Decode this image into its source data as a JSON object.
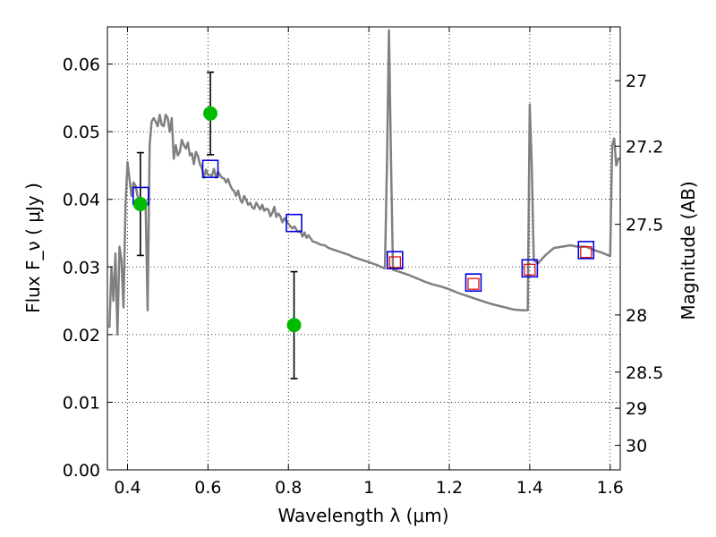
{
  "chart_data": {
    "type": "scatter",
    "xlabel": "Wavelength  λ (μm)",
    "ylabel": "Flux  F_ν  ( μJy )",
    "ylabel_right": "Magnitude (AB)",
    "xlim": [
      0.35,
      1.625
    ],
    "ylim": [
      0.0,
      0.0655
    ],
    "grid": true,
    "x_ticks": [
      {
        "v": 0.4,
        "label": "0.4"
      },
      {
        "v": 0.6,
        "label": "0.6"
      },
      {
        "v": 0.8,
        "label": "0.8"
      },
      {
        "v": 1.0,
        "label": "1"
      },
      {
        "v": 1.2,
        "label": "1.2"
      },
      {
        "v": 1.4,
        "label": "1.4"
      },
      {
        "v": 1.6,
        "label": "1.6"
      }
    ],
    "y_ticks": [
      {
        "v": 0.0,
        "label": "0.00"
      },
      {
        "v": 0.01,
        "label": "0.01"
      },
      {
        "v": 0.02,
        "label": "0.02"
      },
      {
        "v": 0.03,
        "label": "0.03"
      },
      {
        "v": 0.04,
        "label": "0.04"
      },
      {
        "v": 0.05,
        "label": "0.05"
      },
      {
        "v": 0.06,
        "label": "0.06"
      }
    ],
    "right_ticks": [
      {
        "mag": 27,
        "label": "27"
      },
      {
        "mag": 27.2,
        "label": "27.2"
      },
      {
        "mag": 27.5,
        "label": "27.5"
      },
      {
        "mag": 28,
        "label": "28"
      },
      {
        "mag": 28.5,
        "label": "28.5"
      },
      {
        "mag": 29,
        "label": "29"
      },
      {
        "mag": 30,
        "label": "30"
      }
    ],
    "sed_model": {
      "color": "#808080",
      "x": [
        0.355,
        0.36,
        0.365,
        0.37,
        0.375,
        0.38,
        0.385,
        0.39,
        0.395,
        0.4,
        0.405,
        0.41,
        0.415,
        0.42,
        0.425,
        0.43,
        0.435,
        0.44,
        0.445,
        0.45,
        0.455,
        0.46,
        0.465,
        0.47,
        0.475,
        0.48,
        0.485,
        0.49,
        0.495,
        0.5,
        0.505,
        0.51,
        0.515,
        0.52,
        0.525,
        0.53,
        0.535,
        0.54,
        0.545,
        0.55,
        0.555,
        0.56,
        0.565,
        0.57,
        0.575,
        0.58,
        0.585,
        0.59,
        0.595,
        0.6,
        0.605,
        0.61,
        0.615,
        0.62,
        0.625,
        0.63,
        0.635,
        0.64,
        0.645,
        0.65,
        0.655,
        0.66,
        0.665,
        0.67,
        0.675,
        0.68,
        0.685,
        0.69,
        0.695,
        0.7,
        0.705,
        0.71,
        0.715,
        0.72,
        0.725,
        0.73,
        0.735,
        0.74,
        0.745,
        0.75,
        0.755,
        0.76,
        0.765,
        0.77,
        0.775,
        0.78,
        0.785,
        0.79,
        0.795,
        0.8,
        0.805,
        0.81,
        0.815,
        0.82,
        0.825,
        0.83,
        0.835,
        0.84,
        0.845,
        0.85,
        0.86,
        0.87,
        0.88,
        0.89,
        0.9,
        0.91,
        0.92,
        0.93,
        0.94,
        0.95,
        0.96,
        0.97,
        0.98,
        0.99,
        1.0,
        1.01,
        1.02,
        1.03,
        1.04,
        1.045,
        1.05,
        1.055,
        1.06,
        1.065,
        1.07,
        1.08,
        1.1,
        1.12,
        1.14,
        1.16,
        1.18,
        1.2,
        1.22,
        1.24,
        1.26,
        1.28,
        1.3,
        1.32,
        1.34,
        1.36,
        1.38,
        1.39,
        1.395,
        1.4,
        1.405,
        1.41,
        1.42,
        1.44,
        1.46,
        1.48,
        1.5,
        1.52,
        1.54,
        1.56,
        1.58,
        1.6,
        1.605,
        1.61,
        1.615,
        1.62,
        1.625
      ],
      "y": [
        0.021,
        0.03,
        0.025,
        0.032,
        0.02,
        0.033,
        0.031,
        0.024,
        0.039,
        0.0455,
        0.043,
        0.0405,
        0.0425,
        0.042,
        0.0405,
        0.0395,
        0.039,
        0.0395,
        0.0395,
        0.0236,
        0.048,
        0.0515,
        0.052,
        0.0515,
        0.0508,
        0.0525,
        0.051,
        0.0508,
        0.0525,
        0.052,
        0.05,
        0.052,
        0.046,
        0.048,
        0.0465,
        0.047,
        0.0488,
        0.048,
        0.0475,
        0.0484,
        0.0465,
        0.0468,
        0.0452,
        0.047,
        0.0464,
        0.0452,
        0.0446,
        0.0432,
        0.0444,
        0.0436,
        0.0436,
        0.0435,
        0.0445,
        0.0432,
        0.0441,
        0.0436,
        0.0432,
        0.0431,
        0.0425,
        0.043,
        0.0421,
        0.0415,
        0.0412,
        0.0405,
        0.0413,
        0.04,
        0.0395,
        0.0405,
        0.0399,
        0.0392,
        0.0395,
        0.0388,
        0.0386,
        0.0395,
        0.039,
        0.0385,
        0.0392,
        0.0383,
        0.0386,
        0.0385,
        0.0375,
        0.038,
        0.0389,
        0.0374,
        0.0379,
        0.0375,
        0.0366,
        0.0372,
        0.0368,
        0.0364,
        0.036,
        0.0357,
        0.036,
        0.0355,
        0.0352,
        0.0353,
        0.0345,
        0.0351,
        0.0343,
        0.0347,
        0.0338,
        0.0336,
        0.0333,
        0.0332,
        0.0328,
        0.0326,
        0.0324,
        0.0322,
        0.032,
        0.0318,
        0.0315,
        0.0313,
        0.0311,
        0.0309,
        0.0307,
        0.0305,
        0.0303,
        0.03,
        0.0298,
        0.045,
        0.065,
        0.046,
        0.0296,
        0.0295,
        0.0294,
        0.0292,
        0.0288,
        0.0283,
        0.0278,
        0.0274,
        0.0271,
        0.0267,
        0.0262,
        0.0258,
        0.0254,
        0.025,
        0.0246,
        0.0243,
        0.024,
        0.0237,
        0.0236,
        0.0236,
        0.0236,
        0.054,
        0.045,
        0.031,
        0.0305,
        0.0318,
        0.0328,
        0.033,
        0.0332,
        0.033,
        0.033,
        0.0325,
        0.0321,
        0.0316,
        0.048,
        0.049,
        0.045,
        0.046,
        0.046
      ]
    },
    "observed_points": {
      "color": "#00bb00",
      "points": [
        {
          "x": 0.432,
          "y": 0.0393,
          "err": 0.0076
        },
        {
          "x": 0.606,
          "y": 0.0527,
          "err": 0.0061
        },
        {
          "x": 0.814,
          "y": 0.0214,
          "err": 0.0079
        }
      ]
    },
    "model_photometry_blue": {
      "color": "#0000dd",
      "points": [
        {
          "x": 0.433,
          "y": 0.0405
        },
        {
          "x": 0.606,
          "y": 0.0445
        },
        {
          "x": 0.814,
          "y": 0.0365
        },
        {
          "x": 1.065,
          "y": 0.031
        },
        {
          "x": 1.26,
          "y": 0.0277
        },
        {
          "x": 1.4,
          "y": 0.0298
        },
        {
          "x": 1.54,
          "y": 0.0325
        }
      ]
    },
    "model_photometry_red": {
      "color": "#dd0000",
      "points": [
        {
          "x": 1.065,
          "y": 0.0307
        },
        {
          "x": 1.26,
          "y": 0.0275
        },
        {
          "x": 1.4,
          "y": 0.0296
        },
        {
          "x": 1.54,
          "y": 0.0322
        }
      ]
    }
  }
}
